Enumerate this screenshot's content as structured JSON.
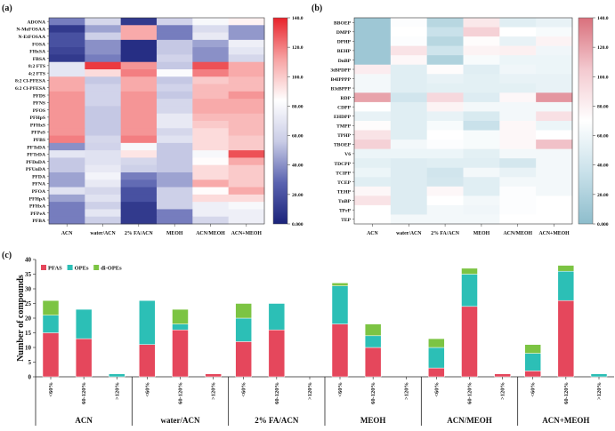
{
  "chart_data": [
    {
      "panel": "(a)",
      "type": "heatmap",
      "columns": [
        "ACN",
        "water/ACN",
        "2% FA/ACN",
        "MEOH",
        "ACN/MEOH",
        "ACN+MEOH"
      ],
      "rows": [
        "ADONA",
        "N-MeFOSAA",
        "N-EtFOSAA",
        "FOSA",
        "FHxSA",
        "FBSA",
        "8:2 FTS",
        "4:2 FTS",
        "8:2 Cl-PFESA",
        "6:2 Cl-PFESA",
        "PFDS",
        "PFNS",
        "PFOS",
        "PFHpS",
        "PFHxS",
        "PFPeS",
        "PFBS",
        "PFTeDA",
        "PFTrDA",
        "PFDoDA",
        "PFUnDA",
        "PFDA",
        "PFNA",
        "PFOA",
        "PFHpA",
        "PFHxA",
        "PFPeA",
        "PFBA"
      ],
      "values": [
        [
          35,
          62,
          10,
          60,
          80,
          88
        ],
        [
          10,
          45,
          110,
          35,
          65,
          42
        ],
        [
          20,
          58,
          110,
          35,
          72,
          42
        ],
        [
          20,
          40,
          5,
          55,
          45,
          75
        ],
        [
          15,
          40,
          5,
          55,
          40,
          70
        ],
        [
          10,
          35,
          5,
          60,
          40,
          62
        ],
        [
          70,
          135,
          115,
          55,
          130,
          110
        ],
        [
          70,
          95,
          120,
          82,
          120,
          110
        ],
        [
          110,
          55,
          110,
          55,
          100,
          105
        ],
        [
          110,
          60,
          110,
          60,
          105,
          105
        ],
        [
          115,
          60,
          115,
          55,
          105,
          115
        ],
        [
          115,
          60,
          115,
          62,
          110,
          110
        ],
        [
          115,
          55,
          115,
          62,
          110,
          110
        ],
        [
          115,
          55,
          115,
          72,
          105,
          105
        ],
        [
          115,
          55,
          115,
          72,
          100,
          105
        ],
        [
          115,
          55,
          115,
          62,
          95,
          105
        ],
        [
          120,
          62,
          120,
          68,
          95,
          100
        ],
        [
          40,
          60,
          80,
          55,
          95,
          100
        ],
        [
          70,
          68,
          92,
          55,
          80,
          130
        ],
        [
          55,
          68,
          62,
          55,
          85,
          110
        ],
        [
          55,
          72,
          58,
          55,
          95,
          100
        ],
        [
          45,
          78,
          35,
          45,
          95,
          100
        ],
        [
          45,
          72,
          30,
          45,
          110,
          100
        ],
        [
          68,
          62,
          20,
          58,
          85,
          110
        ],
        [
          45,
          68,
          20,
          58,
          95,
          95
        ],
        [
          35,
          58,
          10,
          58,
          75,
          80
        ],
        [
          35,
          70,
          10,
          35,
          75,
          75
        ],
        [
          35,
          58,
          10,
          35,
          62,
          75
        ]
      ],
      "colorbar_ticks": [
        "0.000",
        "20.00",
        "40.00",
        "60.00",
        "80.00",
        "100.0",
        "120.0",
        "140.0"
      ],
      "range": [
        0,
        140
      ],
      "colors": [
        "#1b237a",
        "#5a63b0",
        "#c9cce6",
        "#ffffff",
        "#f7a3a3",
        "#e8232b"
      ]
    },
    {
      "panel": "(b)",
      "type": "heatmap",
      "columns": [
        "ACN",
        "water/ACN",
        "2% FA/ACN",
        "MEOH",
        "ACN/MEOH",
        "ACN+MEOH"
      ],
      "rows": [
        "BBOEP",
        "DMPP",
        "DPHP",
        "BEHP",
        "DnBP",
        "3tBPDPP",
        "B4IPPPP",
        "B3tBPPP",
        "RDP",
        "CDPP",
        "EHDPP",
        "TMPP",
        "TPHP",
        "TBOEP",
        "V6",
        "TDCPP",
        "TCIPP",
        "TCEP",
        "TEHP",
        "TnBP",
        "TPrP",
        "TEP"
      ],
      "values": [
        [
          10,
          68,
          25,
          85,
          50,
          55
        ],
        [
          10,
          70,
          35,
          100,
          70,
          65
        ],
        [
          10,
          68,
          25,
          72,
          55,
          78
        ],
        [
          10,
          88,
          38,
          78,
          80,
          60
        ],
        [
          10,
          75,
          20,
          65,
          58,
          58
        ],
        [
          82,
          50,
          72,
          50,
          60,
          58
        ],
        [
          62,
          50,
          55,
          52,
          55,
          55
        ],
        [
          62,
          50,
          52,
          52,
          52,
          55
        ],
        [
          120,
          40,
          95,
          48,
          75,
          125
        ],
        [
          70,
          50,
          78,
          62,
          62,
          62
        ],
        [
          55,
          50,
          55,
          45,
          62,
          90
        ],
        [
          72,
          50,
          65,
          35,
          75,
          58
        ],
        [
          88,
          50,
          70,
          65,
          75,
          70
        ],
        [
          100,
          62,
          68,
          65,
          75,
          108
        ],
        [
          58,
          58,
          58,
          52,
          62,
          62
        ],
        [
          52,
          48,
          50,
          50,
          42,
          62
        ],
        [
          58,
          48,
          40,
          62,
          55,
          62
        ],
        [
          50,
          48,
          42,
          50,
          62,
          62
        ],
        [
          75,
          48,
          75,
          50,
          68,
          62
        ],
        [
          88,
          48,
          70,
          62,
          68,
          70
        ],
        [
          70,
          48,
          62,
          60,
          68,
          70
        ],
        [
          70,
          62,
          62,
          62,
          70,
          70
        ]
      ],
      "colorbar_ticks": [
        "0.000",
        "20.00",
        "40.00",
        "60.00",
        "80.00",
        "100.0",
        "120.0",
        "140.0"
      ],
      "range": [
        0,
        140
      ],
      "colors": [
        "#8dbdcc",
        "#c9e1ea",
        "#ffffff",
        "#f3c9cf",
        "#d9707c"
      ]
    },
    {
      "panel": "(c)",
      "type": "bar",
      "stacked": true,
      "ylabel": "Number of compounds",
      "ylim": [
        0,
        40
      ],
      "yticks": [
        0,
        5,
        10,
        15,
        20,
        25,
        30,
        35,
        40
      ],
      "groups": [
        "ACN",
        "water/ACN",
        "2% FA/ACN",
        "MEOH",
        "ACN/MEOH",
        "ACN+MEOH"
      ],
      "categories": [
        "<60%",
        "60-120%",
        ">120%"
      ],
      "legend_position": "top-left",
      "series": [
        {
          "name": "PFAS",
          "color": "#e5475c",
          "values": [
            [
              15,
              13,
              0
            ],
            [
              11,
              16,
              1
            ],
            [
              12,
              16,
              0
            ],
            [
              18,
              10,
              0
            ],
            [
              3,
              24,
              1
            ],
            [
              2,
              26,
              0
            ]
          ]
        },
        {
          "name": "OPEs",
          "color": "#2cbfb6",
          "values": [
            [
              6,
              10,
              1
            ],
            [
              15,
              2,
              0
            ],
            [
              8,
              9,
              0
            ],
            [
              13,
              4,
              0
            ],
            [
              7,
              11,
              0
            ],
            [
              6,
              10,
              1
            ]
          ]
        },
        {
          "name": "di-OPEs",
          "color": "#7cc443",
          "values": [
            [
              5,
              0,
              0
            ],
            [
              0,
              5,
              0
            ],
            [
              5,
              0,
              0
            ],
            [
              1,
              4,
              0
            ],
            [
              3,
              2,
              0
            ],
            [
              3,
              2,
              0
            ]
          ]
        }
      ]
    }
  ]
}
